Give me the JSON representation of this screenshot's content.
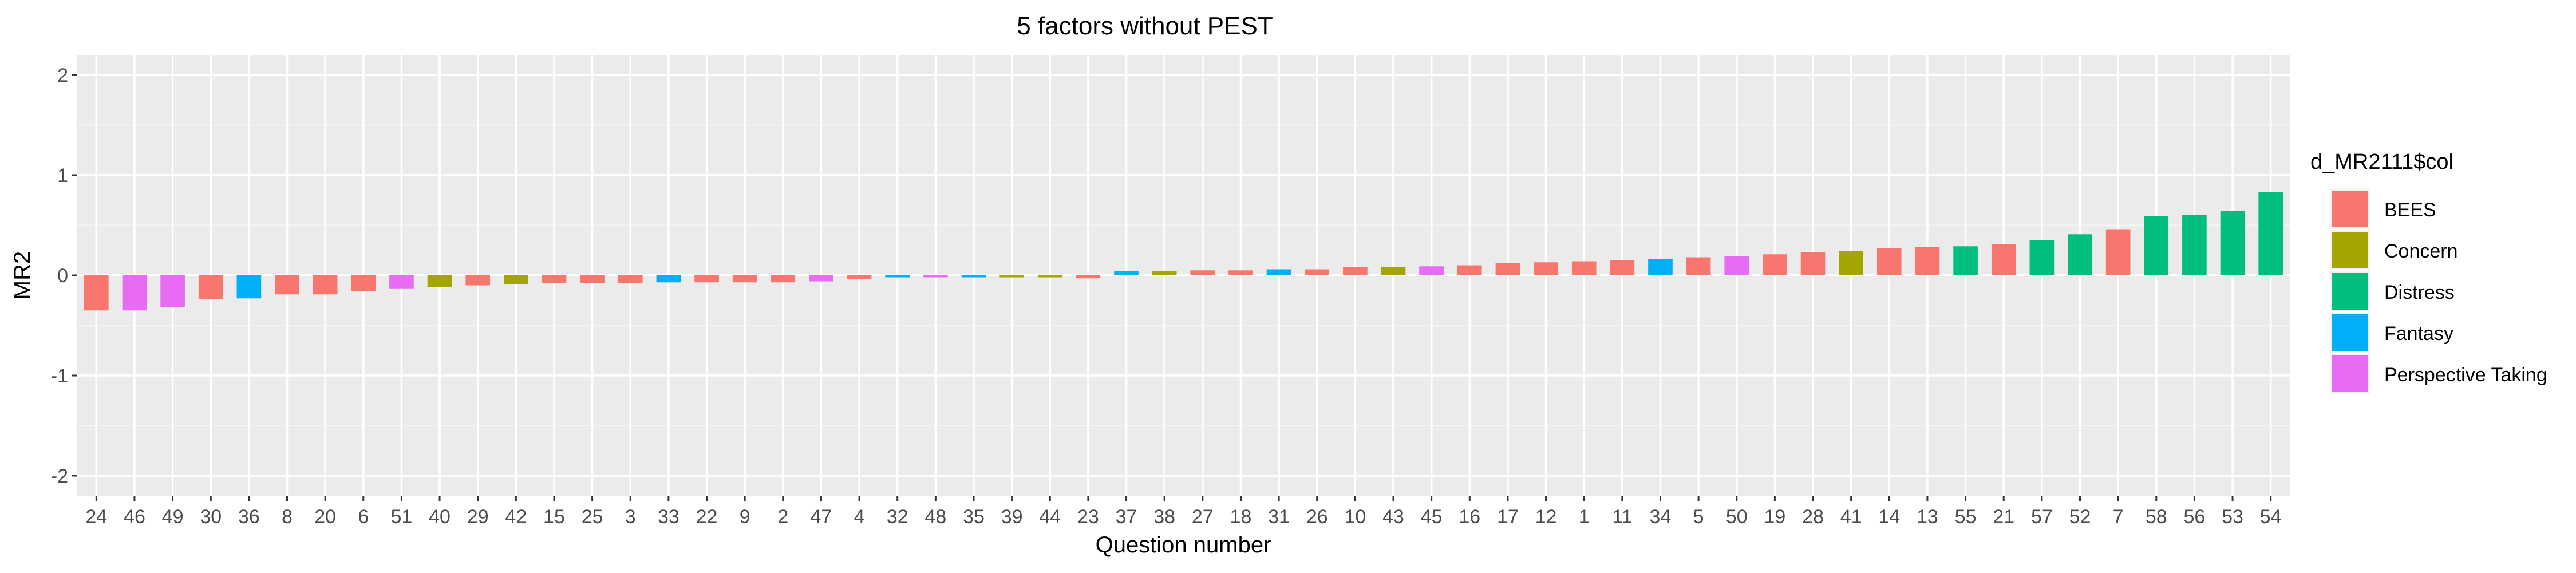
{
  "chart_data": {
    "type": "bar",
    "title": "5 factors without PEST",
    "xlabel": "Question number",
    "ylabel": "MR2",
    "ylim": [
      -2.2,
      2.2
    ],
    "yticks": [
      -2,
      -1,
      0,
      1,
      2
    ],
    "ytick_labels": [
      "-2",
      "-1",
      "0",
      "1",
      "2"
    ],
    "grid": true,
    "legend": {
      "title": "d_MR2111$col",
      "position": "right",
      "entries": [
        {
          "name": "BEES",
          "color": "#F8766D"
        },
        {
          "name": "Concern",
          "color": "#A3A500"
        },
        {
          "name": "Distress",
          "color": "#00BF7D"
        },
        {
          "name": "Fantasy",
          "color": "#00B0F6"
        },
        {
          "name": "Perspective Taking",
          "color": "#E76BF3"
        }
      ]
    },
    "categories": [
      "24",
      "46",
      "49",
      "30",
      "36",
      "8",
      "20",
      "6",
      "51",
      "40",
      "29",
      "42",
      "15",
      "25",
      "3",
      "33",
      "22",
      "9",
      "2",
      "47",
      "4",
      "32",
      "48",
      "35",
      "39",
      "44",
      "23",
      "37",
      "38",
      "27",
      "18",
      "31",
      "26",
      "10",
      "43",
      "45",
      "16",
      "17",
      "12",
      "1",
      "11",
      "34",
      "5",
      "50",
      "19",
      "28",
      "41",
      "14",
      "13",
      "55",
      "21",
      "57",
      "52",
      "7",
      "58",
      "56",
      "53",
      "54"
    ],
    "values": [
      -0.35,
      -0.35,
      -0.32,
      -0.24,
      -0.23,
      -0.19,
      -0.19,
      -0.16,
      -0.13,
      -0.12,
      -0.1,
      -0.09,
      -0.08,
      -0.08,
      -0.08,
      -0.07,
      -0.07,
      -0.07,
      -0.07,
      -0.06,
      -0.04,
      -0.02,
      -0.02,
      -0.02,
      -0.02,
      -0.02,
      -0.03,
      0.04,
      0.04,
      0.05,
      0.05,
      0.06,
      0.06,
      0.08,
      0.08,
      0.09,
      0.1,
      0.12,
      0.13,
      0.14,
      0.15,
      0.16,
      0.18,
      0.19,
      0.21,
      0.23,
      0.24,
      0.27,
      0.28,
      0.29,
      0.31,
      0.35,
      0.41,
      0.46,
      0.59,
      0.6,
      0.64,
      0.83
    ],
    "groups": [
      "BEES",
      "Perspective Taking",
      "Perspective Taking",
      "BEES",
      "Fantasy",
      "BEES",
      "BEES",
      "BEES",
      "Perspective Taking",
      "Concern",
      "BEES",
      "Concern",
      "BEES",
      "BEES",
      "BEES",
      "Fantasy",
      "BEES",
      "BEES",
      "BEES",
      "Perspective Taking",
      "BEES",
      "Fantasy",
      "Perspective Taking",
      "Fantasy",
      "Concern",
      "Concern",
      "BEES",
      "Fantasy",
      "Concern",
      "BEES",
      "BEES",
      "Fantasy",
      "BEES",
      "BEES",
      "Concern",
      "Perspective Taking",
      "BEES",
      "BEES",
      "BEES",
      "BEES",
      "BEES",
      "Fantasy",
      "BEES",
      "Perspective Taking",
      "BEES",
      "BEES",
      "Concern",
      "BEES",
      "BEES",
      "Distress",
      "BEES",
      "Distress",
      "Distress",
      "BEES",
      "Distress",
      "Distress",
      "Distress",
      "Distress"
    ]
  }
}
